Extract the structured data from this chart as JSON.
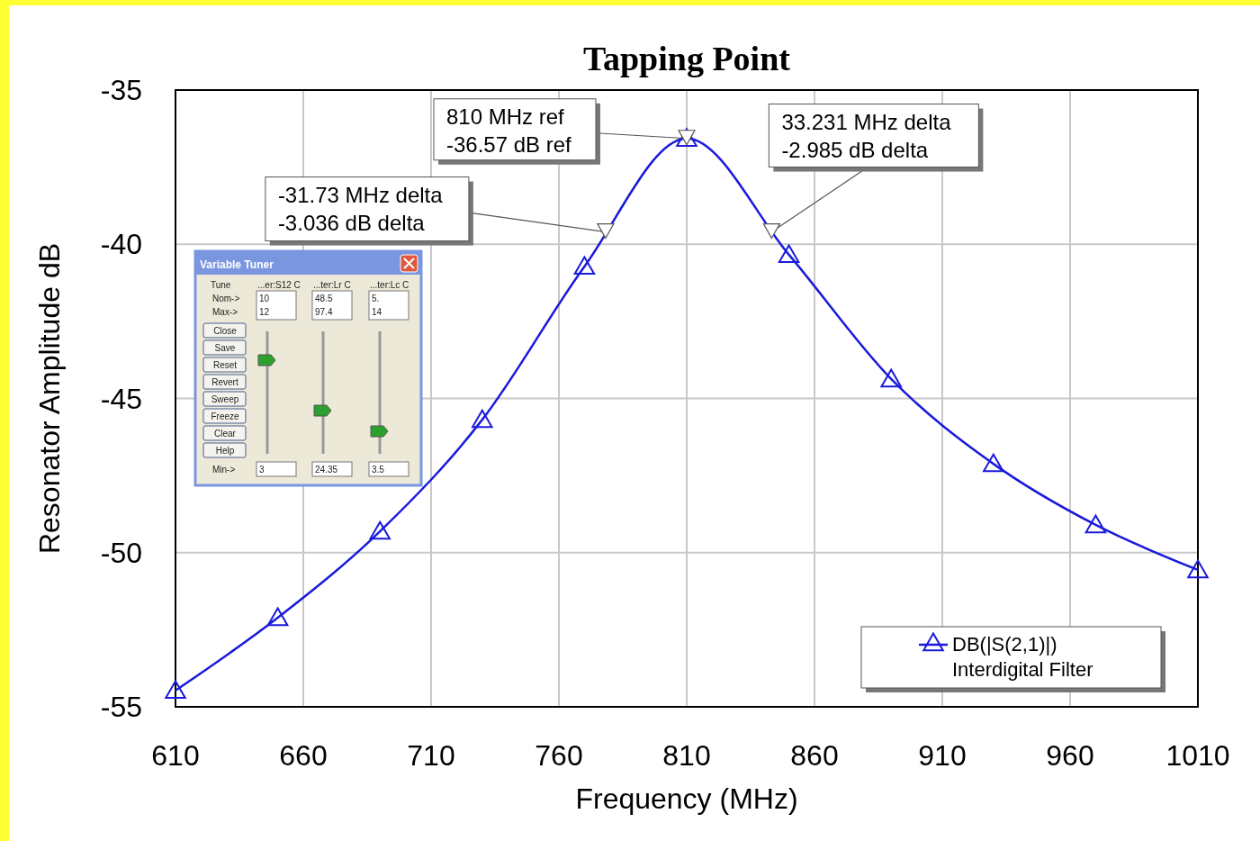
{
  "chart_data": {
    "type": "line",
    "title": "Tapping Point",
    "xlabel": "Frequency (MHz)",
    "ylabel": "Resonator Amplitude dB",
    "x": [
      610,
      650,
      690,
      730,
      770,
      810,
      850,
      890,
      930,
      970,
      1010
    ],
    "series": [
      {
        "name": "DB(|S(2,1)|)\nInterdigital Filter",
        "color": "#1a1adc",
        "values": [
          -54.47,
          -52.11,
          -49.31,
          -45.69,
          -40.72,
          -36.57,
          -40.34,
          -44.37,
          -47.12,
          -49.1,
          -50.56
        ]
      }
    ],
    "xlim": [
      610,
      1010
    ],
    "xticks": [
      610,
      660,
      710,
      760,
      810,
      860,
      910,
      960,
      1010
    ],
    "ylim": [
      -55,
      -35
    ],
    "yticks": [
      -55,
      -50,
      -45,
      -40,
      -35
    ],
    "grid": true,
    "legend": "bottom right",
    "marker": "triangle",
    "line_style": "solid",
    "annotations": [
      {
        "text": "810 MHz ref\n-36.57 dB ref",
        "x": 810,
        "y": -36.57
      },
      {
        "text": "-31.73 MHz delta\n-3.036 dB delta",
        "x": 778.27,
        "y": -39.6
      },
      {
        "text": "33.231 MHz delta\n-2.985 dB delta",
        "x": 843.231,
        "y": -39.6
      },
      "Variable Tuner",
      "Tune",
      "...er:S12 C",
      "...ter:Lr C",
      "...ter:Lc C",
      "Nom->",
      "Max->",
      "10",
      "12",
      "48.5",
      "97.4",
      "5.",
      "14",
      "Close",
      "Save",
      "Reset",
      "Revert",
      "Sweep",
      "Freeze",
      "Clear",
      "Help",
      "Min->",
      "3",
      "24.35",
      "3.5"
    ]
  }
}
